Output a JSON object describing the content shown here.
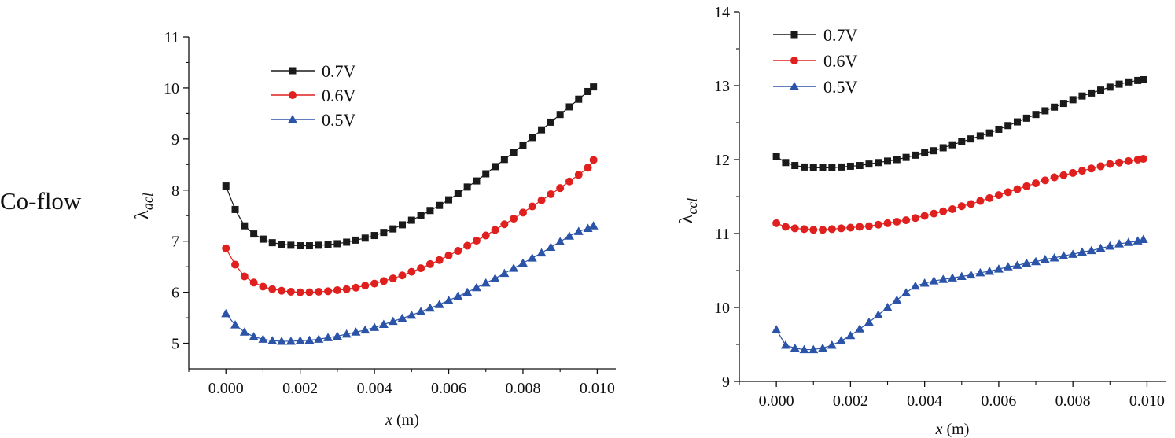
{
  "row_label": "Co-flow",
  "colors": {
    "v07": "#1a1a1a",
    "v06": "#e0201e",
    "v05": "#2b54a8",
    "axis": "#111111"
  },
  "chart_data": [
    {
      "type": "line",
      "xlabel_var": "x",
      "xlabel_unit": "(m)",
      "ylabel_base": "λ",
      "ylabel_sub": "acl",
      "xlim": [
        -0.001,
        0.0105
      ],
      "ylim": [
        4.5,
        11
      ],
      "xticks": [
        0.0,
        0.002,
        0.004,
        0.006,
        0.008,
        0.01
      ],
      "xtick_labels": [
        "0.000",
        "0.002",
        "0.004",
        "0.006",
        "0.008",
        "0.010"
      ],
      "yticks": [
        5,
        6,
        7,
        8,
        9,
        10,
        11
      ],
      "ytick_labels": [
        "5",
        "6",
        "7",
        "8",
        "9",
        "10",
        "11"
      ],
      "legend": [
        "0.7V",
        "0.6V",
        "0.5V"
      ],
      "series": [
        {
          "name": "0.7V",
          "marker": "square",
          "color": "#1a1a1a",
          "x": [
            0.0,
            0.00025,
            0.0005,
            0.00075,
            0.001,
            0.00125,
            0.0015,
            0.00175,
            0.002,
            0.00225,
            0.0025,
            0.00275,
            0.003,
            0.00325,
            0.0035,
            0.00375,
            0.004,
            0.00425,
            0.0045,
            0.00475,
            0.005,
            0.00525,
            0.0055,
            0.00575,
            0.006,
            0.00625,
            0.0065,
            0.00675,
            0.007,
            0.00725,
            0.0075,
            0.00775,
            0.008,
            0.00825,
            0.0085,
            0.00875,
            0.009,
            0.00925,
            0.0095,
            0.00975,
            0.0099
          ],
          "y": [
            8.08,
            7.62,
            7.3,
            7.14,
            7.04,
            6.97,
            6.94,
            6.92,
            6.91,
            6.91,
            6.92,
            6.93,
            6.95,
            6.98,
            7.02,
            7.06,
            7.11,
            7.17,
            7.24,
            7.32,
            7.41,
            7.5,
            7.6,
            7.7,
            7.81,
            7.93,
            8.06,
            8.18,
            8.32,
            8.46,
            8.6,
            8.74,
            8.88,
            9.03,
            9.18,
            9.33,
            9.48,
            9.63,
            9.78,
            9.93,
            10.02
          ]
        },
        {
          "name": "0.6V",
          "marker": "circle",
          "color": "#e0201e",
          "x": [
            0.0,
            0.00025,
            0.0005,
            0.00075,
            0.001,
            0.00125,
            0.0015,
            0.00175,
            0.002,
            0.00225,
            0.0025,
            0.00275,
            0.003,
            0.00325,
            0.0035,
            0.00375,
            0.004,
            0.00425,
            0.0045,
            0.00475,
            0.005,
            0.00525,
            0.0055,
            0.00575,
            0.006,
            0.00625,
            0.0065,
            0.00675,
            0.007,
            0.00725,
            0.0075,
            0.00775,
            0.008,
            0.00825,
            0.0085,
            0.00875,
            0.009,
            0.00925,
            0.0095,
            0.00975,
            0.0099
          ],
          "y": [
            6.86,
            6.54,
            6.31,
            6.19,
            6.11,
            6.06,
            6.03,
            6.01,
            6.0,
            6.0,
            6.01,
            6.02,
            6.04,
            6.06,
            6.09,
            6.13,
            6.17,
            6.22,
            6.27,
            6.33,
            6.4,
            6.47,
            6.55,
            6.63,
            6.72,
            6.81,
            6.91,
            7.01,
            7.11,
            7.22,
            7.33,
            7.44,
            7.56,
            7.68,
            7.8,
            7.92,
            8.04,
            8.17,
            8.3,
            8.44,
            8.59
          ]
        },
        {
          "name": "0.5V",
          "marker": "triangle",
          "color": "#2b54a8",
          "x": [
            0.0,
            0.00025,
            0.0005,
            0.00075,
            0.001,
            0.00125,
            0.0015,
            0.00175,
            0.002,
            0.00225,
            0.0025,
            0.00275,
            0.003,
            0.00325,
            0.0035,
            0.00375,
            0.004,
            0.00425,
            0.0045,
            0.00475,
            0.005,
            0.00525,
            0.0055,
            0.00575,
            0.006,
            0.00625,
            0.0065,
            0.00675,
            0.007,
            0.00725,
            0.0075,
            0.00775,
            0.008,
            0.00825,
            0.0085,
            0.00875,
            0.009,
            0.00925,
            0.0095,
            0.00975,
            0.0099
          ],
          "y": [
            5.58,
            5.36,
            5.22,
            5.13,
            5.08,
            5.05,
            5.04,
            5.04,
            5.05,
            5.06,
            5.08,
            5.11,
            5.14,
            5.18,
            5.22,
            5.26,
            5.31,
            5.37,
            5.43,
            5.49,
            5.55,
            5.62,
            5.69,
            5.76,
            5.84,
            5.92,
            6.0,
            6.09,
            6.18,
            6.27,
            6.37,
            6.47,
            6.57,
            6.67,
            6.77,
            6.88,
            6.99,
            7.1,
            7.19,
            7.25,
            7.3
          ]
        }
      ]
    },
    {
      "type": "line",
      "xlabel_var": "x",
      "xlabel_unit": "(m)",
      "ylabel_base": "λ",
      "ylabel_sub": "ccl",
      "xlim": [
        -0.001,
        0.0105
      ],
      "ylim": [
        9,
        14
      ],
      "xticks": [
        0.0,
        0.002,
        0.004,
        0.006,
        0.008,
        0.01
      ],
      "xtick_labels": [
        "0.000",
        "0.002",
        "0.004",
        "0.006",
        "0.008",
        "0.010"
      ],
      "yticks": [
        9,
        10,
        11,
        12,
        13,
        14
      ],
      "ytick_labels": [
        "9",
        "10",
        "11",
        "12",
        "13",
        "14"
      ],
      "legend": [
        "0.7V",
        "0.6V",
        "0.5V"
      ],
      "series": [
        {
          "name": "0.7V",
          "marker": "square",
          "color": "#1a1a1a",
          "x": [
            0.0,
            0.00025,
            0.0005,
            0.00075,
            0.001,
            0.00125,
            0.0015,
            0.00175,
            0.002,
            0.00225,
            0.0025,
            0.00275,
            0.003,
            0.00325,
            0.0035,
            0.00375,
            0.004,
            0.00425,
            0.0045,
            0.00475,
            0.005,
            0.00525,
            0.0055,
            0.00575,
            0.006,
            0.00625,
            0.0065,
            0.00675,
            0.007,
            0.00725,
            0.0075,
            0.00775,
            0.008,
            0.00825,
            0.0085,
            0.00875,
            0.009,
            0.00925,
            0.0095,
            0.00975,
            0.0099
          ],
          "y": [
            12.04,
            11.96,
            11.92,
            11.9,
            11.89,
            11.89,
            11.89,
            11.9,
            11.91,
            11.92,
            11.94,
            11.96,
            11.98,
            12.0,
            12.03,
            12.06,
            12.09,
            12.12,
            12.16,
            12.2,
            12.24,
            12.28,
            12.32,
            12.36,
            12.41,
            12.46,
            12.51,
            12.56,
            12.61,
            12.66,
            12.71,
            12.76,
            12.81,
            12.86,
            12.9,
            12.94,
            12.98,
            13.02,
            13.05,
            13.07,
            13.08
          ]
        },
        {
          "name": "0.6V",
          "marker": "circle",
          "color": "#e0201e",
          "x": [
            0.0,
            0.00025,
            0.0005,
            0.00075,
            0.001,
            0.00125,
            0.0015,
            0.00175,
            0.002,
            0.00225,
            0.0025,
            0.00275,
            0.003,
            0.00325,
            0.0035,
            0.00375,
            0.004,
            0.00425,
            0.0045,
            0.00475,
            0.005,
            0.00525,
            0.0055,
            0.00575,
            0.006,
            0.00625,
            0.0065,
            0.00675,
            0.007,
            0.00725,
            0.0075,
            0.00775,
            0.008,
            0.00825,
            0.0085,
            0.00875,
            0.009,
            0.00925,
            0.0095,
            0.00975,
            0.0099
          ],
          "y": [
            11.14,
            11.09,
            11.07,
            11.06,
            11.05,
            11.05,
            11.06,
            11.07,
            11.08,
            11.09,
            11.1,
            11.12,
            11.14,
            11.16,
            11.18,
            11.21,
            11.24,
            11.27,
            11.3,
            11.33,
            11.37,
            11.4,
            11.44,
            11.48,
            11.52,
            11.56,
            11.6,
            11.64,
            11.68,
            11.72,
            11.76,
            11.79,
            11.82,
            11.85,
            11.88,
            11.91,
            11.94,
            11.96,
            11.98,
            12.0,
            12.01
          ]
        },
        {
          "name": "0.5V",
          "marker": "triangle",
          "color": "#2b54a8",
          "x": [
            0.0,
            0.00025,
            0.0005,
            0.00075,
            0.001,
            0.00125,
            0.0015,
            0.00175,
            0.002,
            0.00225,
            0.0025,
            0.00275,
            0.003,
            0.00325,
            0.0035,
            0.00375,
            0.004,
            0.00425,
            0.0045,
            0.00475,
            0.005,
            0.00525,
            0.0055,
            0.00575,
            0.006,
            0.00625,
            0.0065,
            0.00675,
            0.007,
            0.00725,
            0.0075,
            0.00775,
            0.008,
            0.00825,
            0.0085,
            0.00875,
            0.009,
            0.00925,
            0.0095,
            0.00975,
            0.0099
          ],
          "y": [
            9.7,
            9.49,
            9.45,
            9.43,
            9.43,
            9.45,
            9.49,
            9.55,
            9.62,
            9.71,
            9.8,
            9.9,
            10.0,
            10.1,
            10.2,
            10.29,
            10.33,
            10.36,
            10.38,
            10.4,
            10.42,
            10.44,
            10.47,
            10.49,
            10.52,
            10.55,
            10.57,
            10.6,
            10.62,
            10.65,
            10.67,
            10.7,
            10.72,
            10.75,
            10.77,
            10.8,
            10.83,
            10.86,
            10.88,
            10.9,
            10.92
          ]
        }
      ]
    }
  ]
}
